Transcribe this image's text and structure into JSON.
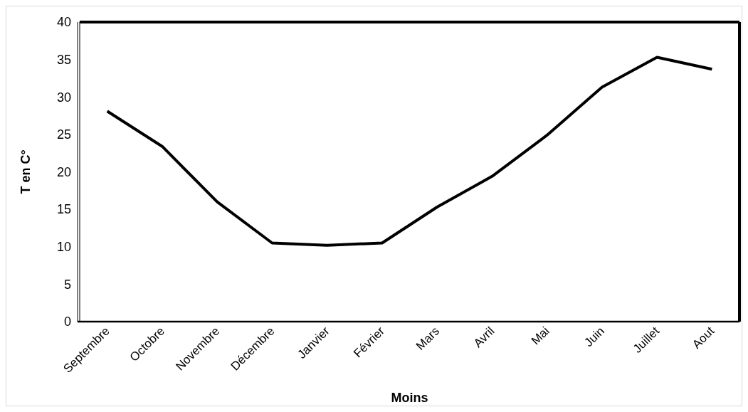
{
  "chart_data": {
    "type": "line",
    "xlabel": "Moins",
    "ylabel": "T en C°",
    "categories": [
      "Septembre",
      "Octobre",
      "Novembre",
      "Décembre",
      "Janvier",
      "Février",
      "Mars",
      "Avril",
      "Mai",
      "Juin",
      "Juillet",
      "Aout"
    ],
    "series": [
      {
        "color": "#000000",
        "values": [
          28.1,
          23.4,
          16.0,
          10.5,
          10.2,
          10.5,
          15.3,
          19.4,
          24.9,
          31.3,
          35.3,
          33.7
        ]
      }
    ],
    "ylim": [
      0,
      40
    ],
    "yticks": [
      0,
      5,
      10,
      15,
      20,
      25,
      30,
      35,
      40
    ],
    "grid": false,
    "marker": "none",
    "line_style": "solid"
  }
}
